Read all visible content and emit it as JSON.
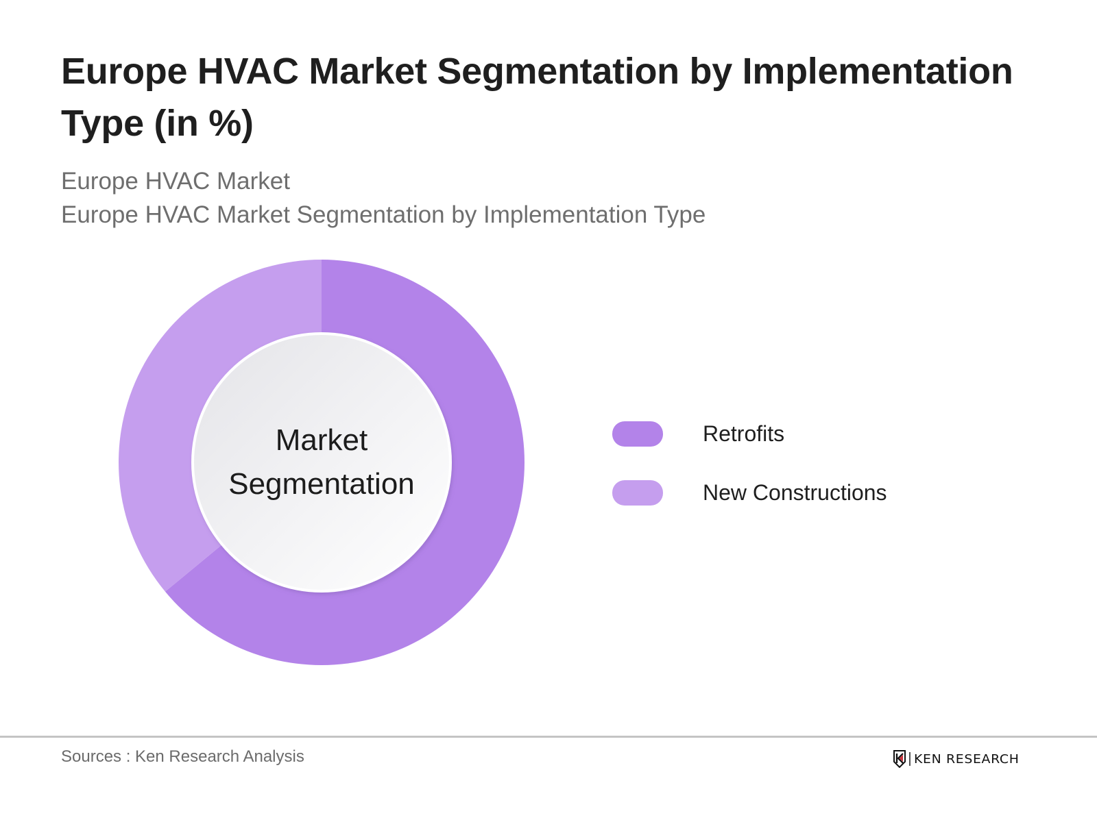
{
  "header": {
    "title": "Europe HVAC Market Segmentation by Implementation Type (in %)",
    "subtitle_1": "Europe HVAC Market",
    "subtitle_2": "Europe HVAC Market Segmentation by Implementation Type"
  },
  "chart": {
    "center_label_line1": "Market",
    "center_label_line2": "Segmentation"
  },
  "legend": {
    "items": [
      {
        "label": "Retrofits",
        "color": "#b383e9"
      },
      {
        "label": "New Constructions",
        "color": "#c59eee"
      }
    ]
  },
  "footer": {
    "sources": "Sources : Ken Research Analysis",
    "logo_text": "KEN RESEARCH"
  },
  "colors": {
    "retrofits": "#b383e9",
    "new_constructions": "#c59eee",
    "divider": "#c4c4c4",
    "logo_accent": "#c8323c"
  },
  "chart_data": {
    "type": "pie",
    "variant": "donut",
    "title": "Europe HVAC Market Segmentation by Implementation Type (in %)",
    "subtitle": [
      "Europe HVAC Market",
      "Europe HVAC Market Segmentation by Implementation Type"
    ],
    "center_text": "Market Segmentation",
    "categories": [
      "Retrofits",
      "New Constructions"
    ],
    "values": [
      64,
      36
    ],
    "unit": "%",
    "start_angle_deg": 0,
    "direction": "clockwise",
    "legend_position": "right",
    "data_labels_shown": false,
    "source": "Sources : Ken Research Analysis"
  }
}
